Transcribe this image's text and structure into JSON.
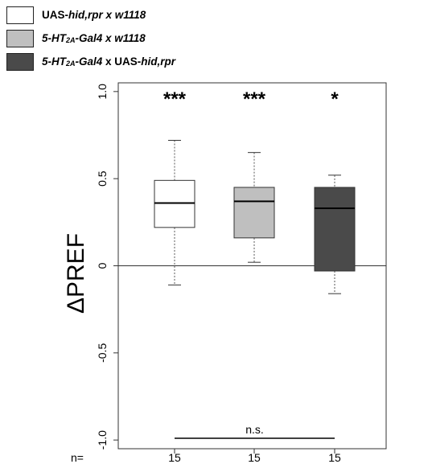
{
  "legend": [
    {
      "html": "UAS-<i>hid,rpr x w1118</i>",
      "color": "#ffffff"
    },
    {
      "html": "<i>5-HT<sub>2A</sub>-Gal4 x w1118</i>",
      "color": "#bfbfbf"
    },
    {
      "html": "<i>5-HT<sub>2A</sub>-Gal4</i> x UAS-<i>hid,rpr</i>",
      "color": "#4a4a4a"
    }
  ],
  "chart_data": {
    "type": "box",
    "ylabel": "ΔPREF",
    "ylim": [
      -1.05,
      1.05
    ],
    "yticks": [
      -1.0,
      -0.5,
      0,
      0.5,
      1.0
    ],
    "ytick_labels": [
      "-1.0",
      "-0.5",
      "0",
      "0.5",
      "1.0"
    ],
    "n_label": "n=",
    "reference_line": 0,
    "groups": [
      {
        "label": "UAS-hid,rpr x w1118",
        "color": "#ffffff",
        "median_color": "#000000",
        "whisker_low": -0.11,
        "q1": 0.22,
        "median": 0.36,
        "q3": 0.49,
        "whisker_high": 0.72,
        "n": "15",
        "significance": "***"
      },
      {
        "label": "5-HT2A-Gal4 x w1118",
        "color": "#bfbfbf",
        "median_color": "#000000",
        "whisker_low": 0.02,
        "q1": 0.16,
        "median": 0.37,
        "q3": 0.45,
        "whisker_high": 0.65,
        "n": "15",
        "significance": "***"
      },
      {
        "label": "5-HT2A-Gal4 x UAS-hid,rpr",
        "color": "#4a4a4a",
        "median_color": "#000000",
        "whisker_low": -0.16,
        "q1": -0.03,
        "median": 0.33,
        "q3": 0.45,
        "whisker_high": 0.52,
        "n": "15",
        "significance": "*"
      }
    ],
    "comparison": {
      "y": -0.99,
      "from": 0,
      "to": 2,
      "label": "n.s."
    }
  }
}
